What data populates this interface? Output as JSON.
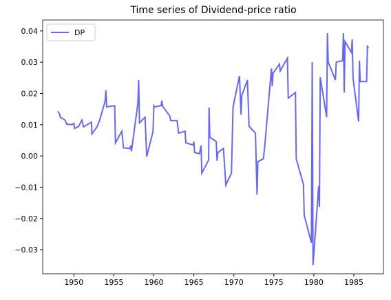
{
  "chart_data": {
    "type": "line",
    "title": "Time series of Dividend-price ratio",
    "x": [
      1948.0,
      1948.2,
      1948.3,
      1948.9,
      1949.1,
      1949.7,
      1950.0,
      1950.1,
      1950.6,
      1951.0,
      1951.2,
      1951.6,
      1952.2,
      1952.25,
      1952.9,
      1953.2,
      1953.9,
      1954.0,
      1954.1,
      1955.1,
      1955.2,
      1956.0,
      1956.2,
      1957.0,
      1957.1,
      1957.2,
      1958.0,
      1958.1,
      1958.2,
      1958.9,
      1959.1,
      1959.9,
      1960.0,
      1960.1,
      1960.9,
      1961.0,
      1961.1,
      1962.0,
      1962.1,
      1962.9,
      1963.1,
      1963.9,
      1964.0,
      1964.9,
      1965.0,
      1965.1,
      1965.7,
      1965.9,
      1966.0,
      1966.85,
      1966.9,
      1967.0,
      1967.8,
      1967.9,
      1968.0,
      1968.7,
      1969.0,
      1969.7,
      1969.9,
      1970.7,
      1970.9,
      1971.0,
      1971.7,
      1971.9,
      1972.7,
      1972.9,
      1973.0,
      1973.7,
      1973.9,
      1974.7,
      1974.8,
      1974.9,
      1975.7,
      1975.8,
      1976.7,
      1976.8,
      1977.7,
      1977.8,
      1978.7,
      1978.8,
      1979.7,
      1979.8,
      1979.9,
      1980.6,
      1980.7,
      1980.8,
      1981.6,
      1981.7,
      1981.8,
      1982.7,
      1982.8,
      1983.6,
      1983.7,
      1983.8,
      1983.9,
      1984.7,
      1984.8,
      1984.9,
      1985.6,
      1985.7,
      1985.8,
      1986.6,
      1986.7,
      1986.8
    ],
    "series": [
      {
        "name": "DP",
        "color": "#6666ff",
        "values": [
          0.0143,
          0.0135,
          0.0124,
          0.0115,
          0.0102,
          0.01,
          0.0104,
          0.0088,
          0.0095,
          0.0115,
          0.0093,
          0.0099,
          0.0108,
          0.0071,
          0.0093,
          0.0113,
          0.0174,
          0.021,
          0.0157,
          0.0161,
          0.0042,
          0.0079,
          0.0026,
          0.0024,
          0.0033,
          0.0015,
          0.0168,
          0.0243,
          0.0106,
          0.0124,
          -0.0002,
          0.0079,
          0.0161,
          0.0157,
          0.0161,
          0.0177,
          0.0159,
          0.0128,
          0.0113,
          0.0113,
          0.0073,
          0.0079,
          0.0042,
          0.0035,
          0.0046,
          0.0011,
          0.0007,
          0.0033,
          -0.0055,
          -0.0013,
          0.0155,
          0.006,
          0.0046,
          -0.0015,
          0.0011,
          0.0024,
          -0.0093,
          -0.0055,
          0.0157,
          0.0256,
          0.0132,
          0.0194,
          0.0243,
          0.0095,
          0.0073,
          -0.0124,
          -0.0018,
          -0.0009,
          0.0042,
          0.028,
          0.0223,
          0.0265,
          0.0294,
          0.0272,
          0.0313,
          0.0185,
          0.0203,
          -0.0009,
          -0.0091,
          -0.019,
          -0.0278,
          0.03,
          -0.0349,
          -0.0097,
          -0.0163,
          0.0252,
          0.0124,
          0.0393,
          0.03,
          0.0243,
          0.03,
          0.0305,
          0.0393,
          0.0203,
          0.0366,
          0.0331,
          0.0373,
          0.0249,
          0.011,
          0.0305,
          0.0238,
          0.0238,
          0.0353,
          0.0344
        ]
      }
    ],
    "xlim": [
      1946.1,
      1988.7
    ],
    "ylim": [
      -0.0377,
      0.0435
    ],
    "xticks": [
      1950,
      1955,
      1960,
      1965,
      1970,
      1975,
      1980,
      1985
    ],
    "yticks": [
      {
        "value": -0.03,
        "label": "−0.03"
      },
      {
        "value": -0.02,
        "label": "−0.02"
      },
      {
        "value": -0.01,
        "label": "−0.01"
      },
      {
        "value": 0,
        "label": "0.00"
      },
      0.01,
      0.02,
      0.03,
      0.04
    ],
    "legend": "upper left"
  }
}
